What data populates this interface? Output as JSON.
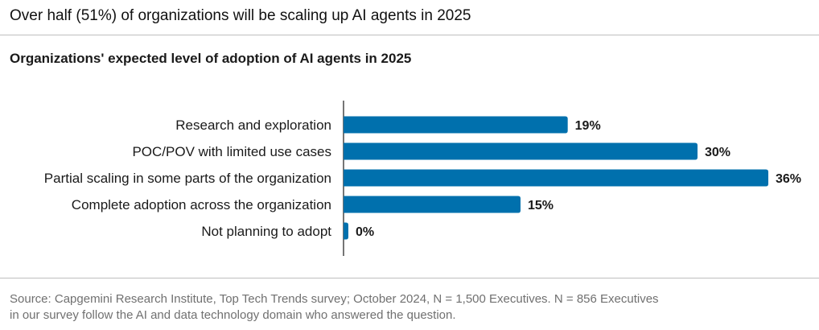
{
  "headline": "Over half (51%) of organizations will be scaling up AI agents in 2025",
  "source": {
    "line1": "Source: Capgemini Research Institute, Top Tech Trends survey; October 2024, N = 1,500 Executives. N = 856 Executives",
    "line2": "in our survey follow the AI and data technology domain who answered the question."
  },
  "colors": {
    "bar": "#0070ad",
    "axis": "#1a1a1a",
    "rule": "#bfbfbf",
    "source_text": "#707070"
  },
  "chart_data": {
    "type": "bar",
    "orientation": "horizontal",
    "title": "Organizations' expected level of adoption of AI agents in 2025",
    "categories": [
      "Research and exploration",
      "POC/POV with limited use cases",
      "Partial scaling in some parts of the organization",
      "Complete adoption across the organization",
      "Not planning to adopt"
    ],
    "values": [
      19,
      30,
      36,
      15,
      0
    ],
    "value_labels": [
      "19%",
      "30%",
      "36%",
      "15%",
      "0%"
    ],
    "xlim": [
      0,
      36
    ],
    "unit": "%",
    "grid": false,
    "legend": "none"
  }
}
